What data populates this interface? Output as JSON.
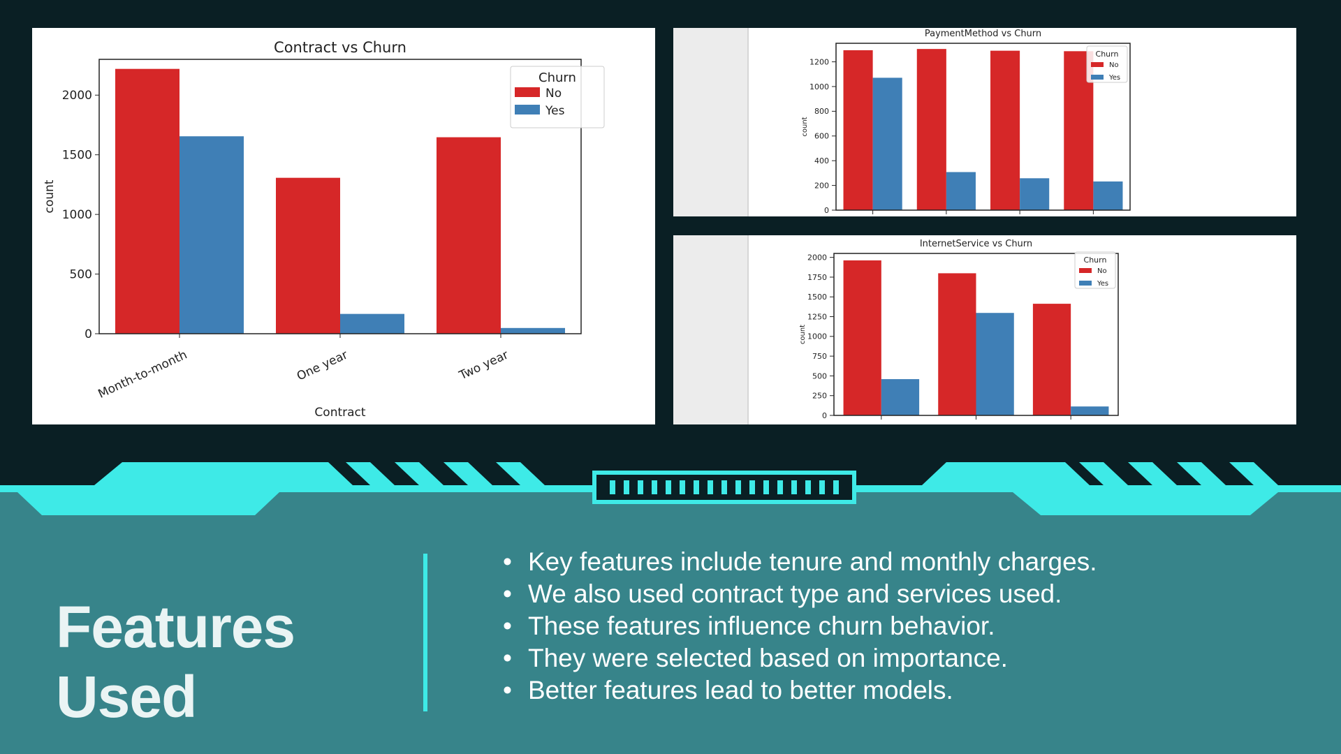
{
  "slide": {
    "title": "Features Used",
    "bullets": [
      "Key features include tenure and monthly charges.",
      "We also used contract type and services used.",
      "These features influence churn behavior.",
      "They were selected based on importance.",
      "Better features lead to better models."
    ]
  },
  "colors": {
    "no": "#d62728",
    "yes": "#3f7fb6",
    "accent": "#3eeae7",
    "bottom_bg": "#37848a",
    "top_bg": "#0a1f24"
  },
  "chart_data": [
    {
      "id": "contract",
      "type": "bar",
      "title": "Contract vs Churn",
      "xlabel": "Contract",
      "ylabel": "count",
      "categories": [
        "Month-to-month",
        "One year",
        "Two year"
      ],
      "series": [
        {
          "name": "No",
          "values": [
            2220,
            1307,
            1647
          ]
        },
        {
          "name": "Yes",
          "values": [
            1655,
            166,
            48
          ]
        }
      ],
      "ylim": [
        0,
        2300
      ],
      "yticks": [
        0,
        500,
        1000,
        1500,
        2000
      ],
      "legend": {
        "title": "Churn",
        "position": "top-right"
      },
      "grid": false
    },
    {
      "id": "payment",
      "type": "bar",
      "title": "PaymentMethod vs Churn",
      "xlabel": "",
      "ylabel": "count",
      "categories": [
        "",
        "",
        "",
        ""
      ],
      "series": [
        {
          "name": "No",
          "values": [
            1294,
            1304,
            1290,
            1286
          ]
        },
        {
          "name": "Yes",
          "values": [
            1071,
            308,
            258,
            232
          ]
        }
      ],
      "ylim": [
        0,
        1350
      ],
      "yticks": [
        0,
        200,
        400,
        600,
        800,
        1000,
        1200
      ],
      "legend": {
        "title": "Churn",
        "position": "top-right"
      },
      "grid": false
    },
    {
      "id": "internet",
      "type": "bar",
      "title": "InternetService vs Churn",
      "xlabel": "",
      "ylabel": "count",
      "categories": [
        "",
        "",
        ""
      ],
      "series": [
        {
          "name": "No",
          "values": [
            1962,
            1799,
            1413
          ]
        },
        {
          "name": "Yes",
          "values": [
            459,
            1297,
            113
          ]
        }
      ],
      "ylim": [
        0,
        2050
      ],
      "yticks": [
        0,
        250,
        500,
        750,
        1000,
        1250,
        1500,
        1750,
        2000
      ],
      "legend": {
        "title": "Churn",
        "position": "top-right"
      },
      "grid": false
    }
  ]
}
